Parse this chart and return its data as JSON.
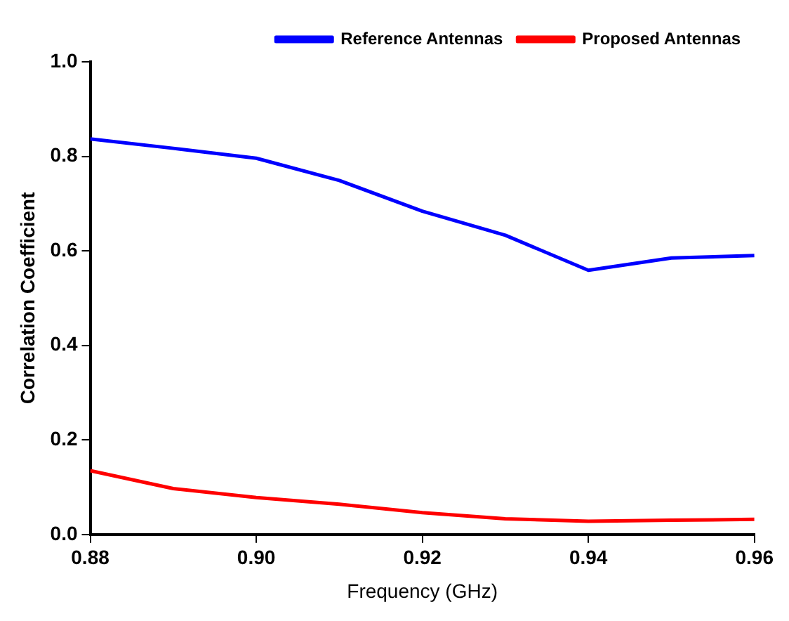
{
  "chart_data": {
    "type": "line",
    "xlabel": "Frequency (GHz)",
    "ylabel": "Correlation Coefficient",
    "x": [
      0.88,
      0.89,
      0.9,
      0.91,
      0.92,
      0.93,
      0.94,
      0.95,
      0.96
    ],
    "series": [
      {
        "name": "Reference Antennas",
        "color": "#0000ff",
        "values": [
          0.837,
          0.817,
          0.796,
          0.749,
          0.684,
          0.633,
          0.559,
          0.585,
          0.59
        ]
      },
      {
        "name": "Proposed Antennas",
        "color": "#ff0000",
        "values": [
          0.135,
          0.097,
          0.078,
          0.064,
          0.046,
          0.033,
          0.028,
          0.03,
          0.032
        ]
      }
    ],
    "xlim": [
      0.88,
      0.96
    ],
    "xticks": [
      {
        "value": 0.88,
        "label": "0.88"
      },
      {
        "value": 0.9,
        "label": "0.90"
      },
      {
        "value": 0.92,
        "label": "0.92"
      },
      {
        "value": 0.94,
        "label": "0.94"
      },
      {
        "value": 0.96,
        "label": "0.96"
      }
    ],
    "ylim": [
      0,
      1
    ],
    "yticks": [
      {
        "value": 0,
        "label": "0.0"
      },
      {
        "value": 0.2,
        "label": "0.2"
      },
      {
        "value": 0.4,
        "label": "0.4"
      },
      {
        "value": 0.6,
        "label": "0.6"
      },
      {
        "value": 0.8,
        "label": "0.8"
      },
      {
        "value": 1,
        "label": "1.0"
      }
    ],
    "grid": false,
    "legend": "top right",
    "marker": "none",
    "line_style": "solid"
  }
}
